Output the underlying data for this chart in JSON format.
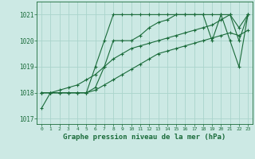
{
  "background_color": "#cce9e4",
  "grid_color": "#aad4cc",
  "line_color": "#1a6b3a",
  "title": "Graphe pression niveau de la mer (hPa)",
  "ylim": [
    1016.8,
    1021.5
  ],
  "xlim": [
    -0.5,
    23.5
  ],
  "yticks": [
    1017,
    1018,
    1019,
    1020,
    1021
  ],
  "xticks": [
    0,
    1,
    2,
    3,
    4,
    5,
    6,
    7,
    8,
    9,
    10,
    11,
    12,
    13,
    14,
    15,
    16,
    17,
    18,
    19,
    20,
    21,
    22,
    23
  ],
  "series": [
    [
      1017.4,
      1018.0,
      1018.0,
      1018.0,
      1018.0,
      1018.0,
      1019.0,
      1020.0,
      1021.0,
      1021.0,
      1021.0,
      1021.0,
      1021.0,
      1021.0,
      1021.0,
      1021.0,
      1021.0,
      1021.0,
      1021.0,
      1021.0,
      1021.0,
      1021.0,
      1020.0,
      1021.0
    ],
    [
      1018.0,
      1018.0,
      1018.0,
      1018.0,
      1018.0,
      1018.0,
      1018.2,
      1019.0,
      1020.0,
      1020.0,
      1020.0,
      1020.2,
      1020.5,
      1020.7,
      1020.8,
      1021.0,
      1021.0,
      1021.0,
      1021.0,
      1020.0,
      1021.0,
      1020.0,
      1019.0,
      1021.0
    ],
    [
      1018.0,
      1018.0,
      1018.1,
      1018.2,
      1018.3,
      1018.5,
      1018.7,
      1019.0,
      1019.3,
      1019.5,
      1019.7,
      1019.8,
      1019.9,
      1020.0,
      1020.1,
      1020.2,
      1020.3,
      1020.4,
      1020.5,
      1020.6,
      1020.8,
      1021.0,
      1020.5,
      1021.0
    ],
    [
      1018.0,
      1018.0,
      1018.0,
      1018.0,
      1018.0,
      1018.0,
      1018.1,
      1018.3,
      1018.5,
      1018.7,
      1018.9,
      1019.1,
      1019.3,
      1019.5,
      1019.6,
      1019.7,
      1019.8,
      1019.9,
      1020.0,
      1020.1,
      1020.2,
      1020.3,
      1020.2,
      1020.4
    ]
  ]
}
